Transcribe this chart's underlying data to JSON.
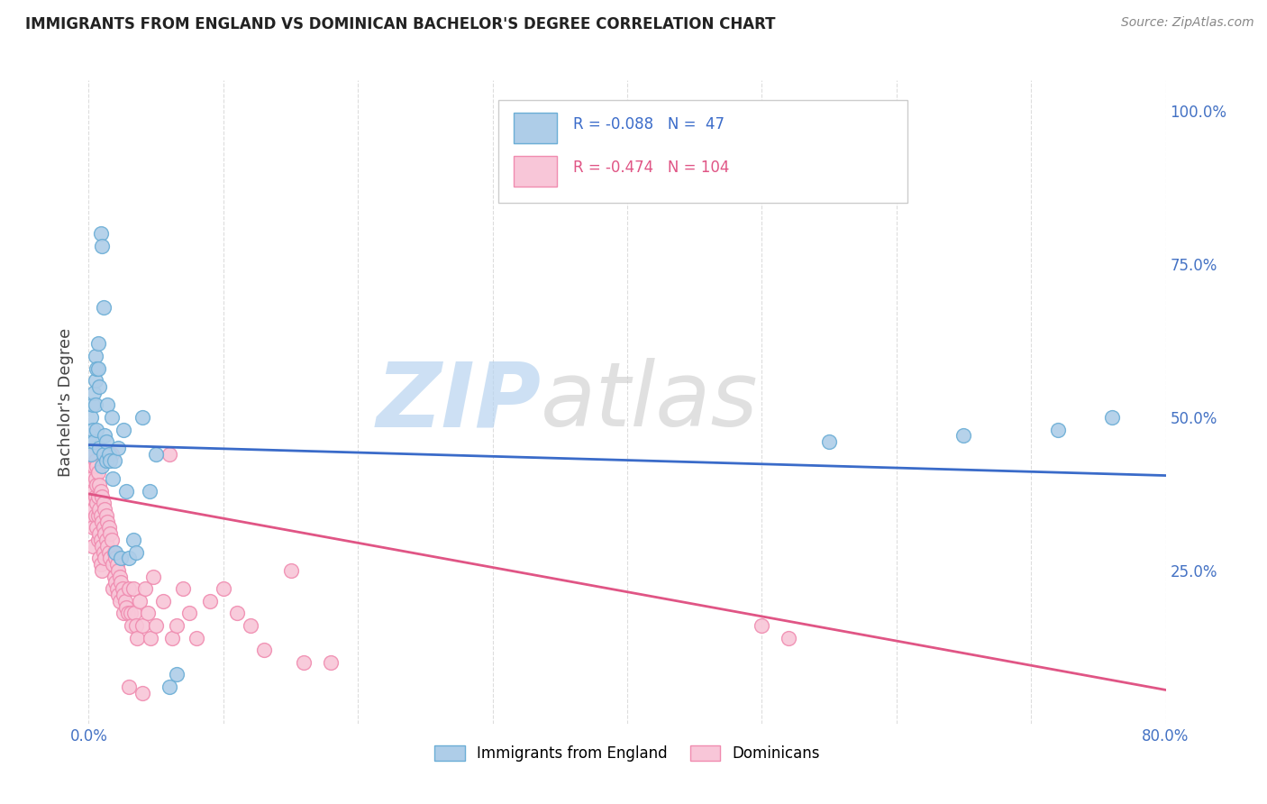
{
  "title": "IMMIGRANTS FROM ENGLAND VS DOMINICAN BACHELOR'S DEGREE CORRELATION CHART",
  "source": "Source: ZipAtlas.com",
  "ylabel": "Bachelor's Degree",
  "right_yticks": [
    "100.0%",
    "75.0%",
    "50.0%",
    "25.0%"
  ],
  "right_ytick_vals": [
    1.0,
    0.75,
    0.5,
    0.25
  ],
  "england_color": "#6baed6",
  "england_color_fill": "#aecde8",
  "dominican_color": "#f08cb0",
  "dominican_color_fill": "#f8c6d8",
  "england_R": -0.088,
  "england_N": 47,
  "dominican_R": -0.474,
  "dominican_N": 104,
  "legend_label_england": "Immigrants from England",
  "legend_label_dominican": "Dominicans",
  "watermark_zip": "ZIP",
  "watermark_atlas": "atlas",
  "background_color": "#ffffff",
  "grid_color": "#dddddd",
  "england_scatter": [
    [
      0.001,
      0.47
    ],
    [
      0.002,
      0.5
    ],
    [
      0.002,
      0.44
    ],
    [
      0.003,
      0.52
    ],
    [
      0.003,
      0.48
    ],
    [
      0.004,
      0.54
    ],
    [
      0.004,
      0.46
    ],
    [
      0.005,
      0.6
    ],
    [
      0.005,
      0.56
    ],
    [
      0.005,
      0.52
    ],
    [
      0.006,
      0.58
    ],
    [
      0.006,
      0.48
    ],
    [
      0.007,
      0.62
    ],
    [
      0.007,
      0.58
    ],
    [
      0.008,
      0.55
    ],
    [
      0.008,
      0.45
    ],
    [
      0.009,
      0.8
    ],
    [
      0.01,
      0.42
    ],
    [
      0.01,
      0.78
    ],
    [
      0.011,
      0.68
    ],
    [
      0.011,
      0.44
    ],
    [
      0.012,
      0.47
    ],
    [
      0.013,
      0.43
    ],
    [
      0.013,
      0.46
    ],
    [
      0.014,
      0.52
    ],
    [
      0.015,
      0.44
    ],
    [
      0.016,
      0.43
    ],
    [
      0.017,
      0.5
    ],
    [
      0.018,
      0.4
    ],
    [
      0.019,
      0.43
    ],
    [
      0.02,
      0.28
    ],
    [
      0.022,
      0.45
    ],
    [
      0.024,
      0.27
    ],
    [
      0.026,
      0.48
    ],
    [
      0.028,
      0.38
    ],
    [
      0.03,
      0.27
    ],
    [
      0.033,
      0.3
    ],
    [
      0.035,
      0.28
    ],
    [
      0.04,
      0.5
    ],
    [
      0.045,
      0.38
    ],
    [
      0.05,
      0.44
    ],
    [
      0.06,
      0.06
    ],
    [
      0.065,
      0.08
    ],
    [
      0.55,
      0.46
    ],
    [
      0.65,
      0.47
    ],
    [
      0.72,
      0.48
    ],
    [
      0.76,
      0.5
    ]
  ],
  "dominican_scatter": [
    [
      0.001,
      0.42
    ],
    [
      0.001,
      0.38
    ],
    [
      0.002,
      0.4
    ],
    [
      0.002,
      0.36
    ],
    [
      0.002,
      0.33
    ],
    [
      0.003,
      0.35
    ],
    [
      0.003,
      0.32
    ],
    [
      0.003,
      0.29
    ],
    [
      0.004,
      0.44
    ],
    [
      0.004,
      0.42
    ],
    [
      0.004,
      0.38
    ],
    [
      0.004,
      0.35
    ],
    [
      0.005,
      0.43
    ],
    [
      0.005,
      0.4
    ],
    [
      0.005,
      0.37
    ],
    [
      0.005,
      0.34
    ],
    [
      0.006,
      0.42
    ],
    [
      0.006,
      0.39
    ],
    [
      0.006,
      0.36
    ],
    [
      0.006,
      0.32
    ],
    [
      0.007,
      0.41
    ],
    [
      0.007,
      0.37
    ],
    [
      0.007,
      0.34
    ],
    [
      0.007,
      0.3
    ],
    [
      0.008,
      0.39
    ],
    [
      0.008,
      0.35
    ],
    [
      0.008,
      0.31
    ],
    [
      0.008,
      0.27
    ],
    [
      0.009,
      0.38
    ],
    [
      0.009,
      0.34
    ],
    [
      0.009,
      0.3
    ],
    [
      0.009,
      0.26
    ],
    [
      0.01,
      0.37
    ],
    [
      0.01,
      0.33
    ],
    [
      0.01,
      0.29
    ],
    [
      0.01,
      0.25
    ],
    [
      0.011,
      0.36
    ],
    [
      0.011,
      0.32
    ],
    [
      0.011,
      0.28
    ],
    [
      0.012,
      0.35
    ],
    [
      0.012,
      0.31
    ],
    [
      0.012,
      0.27
    ],
    [
      0.013,
      0.34
    ],
    [
      0.013,
      0.3
    ],
    [
      0.014,
      0.33
    ],
    [
      0.014,
      0.29
    ],
    [
      0.015,
      0.32
    ],
    [
      0.015,
      0.28
    ],
    [
      0.016,
      0.31
    ],
    [
      0.016,
      0.27
    ],
    [
      0.017,
      0.44
    ],
    [
      0.017,
      0.3
    ],
    [
      0.018,
      0.26
    ],
    [
      0.018,
      0.22
    ],
    [
      0.019,
      0.28
    ],
    [
      0.019,
      0.24
    ],
    [
      0.02,
      0.27
    ],
    [
      0.02,
      0.23
    ],
    [
      0.021,
      0.26
    ],
    [
      0.021,
      0.22
    ],
    [
      0.022,
      0.25
    ],
    [
      0.022,
      0.21
    ],
    [
      0.023,
      0.24
    ],
    [
      0.023,
      0.2
    ],
    [
      0.024,
      0.23
    ],
    [
      0.025,
      0.22
    ],
    [
      0.026,
      0.21
    ],
    [
      0.026,
      0.18
    ],
    [
      0.027,
      0.2
    ],
    [
      0.028,
      0.19
    ],
    [
      0.029,
      0.18
    ],
    [
      0.03,
      0.22
    ],
    [
      0.031,
      0.18
    ],
    [
      0.032,
      0.16
    ],
    [
      0.033,
      0.22
    ],
    [
      0.034,
      0.18
    ],
    [
      0.035,
      0.16
    ],
    [
      0.036,
      0.14
    ],
    [
      0.038,
      0.2
    ],
    [
      0.04,
      0.16
    ],
    [
      0.042,
      0.22
    ],
    [
      0.044,
      0.18
    ],
    [
      0.046,
      0.14
    ],
    [
      0.048,
      0.24
    ],
    [
      0.05,
      0.16
    ],
    [
      0.055,
      0.2
    ],
    [
      0.06,
      0.44
    ],
    [
      0.062,
      0.14
    ],
    [
      0.065,
      0.16
    ],
    [
      0.07,
      0.22
    ],
    [
      0.075,
      0.18
    ],
    [
      0.08,
      0.14
    ],
    [
      0.09,
      0.2
    ],
    [
      0.1,
      0.22
    ],
    [
      0.11,
      0.18
    ],
    [
      0.12,
      0.16
    ],
    [
      0.13,
      0.12
    ],
    [
      0.15,
      0.25
    ],
    [
      0.16,
      0.1
    ],
    [
      0.18,
      0.1
    ],
    [
      0.03,
      0.06
    ],
    [
      0.04,
      0.05
    ],
    [
      0.5,
      0.16
    ],
    [
      0.52,
      0.14
    ]
  ],
  "xlim": [
    0.0,
    0.8
  ],
  "ylim": [
    0.0,
    1.05
  ],
  "england_line_x": [
    0.0,
    0.8
  ],
  "england_line_y": [
    0.455,
    0.405
  ],
  "dominican_line_x": [
    0.0,
    0.8
  ],
  "dominican_line_y": [
    0.375,
    0.055
  ]
}
